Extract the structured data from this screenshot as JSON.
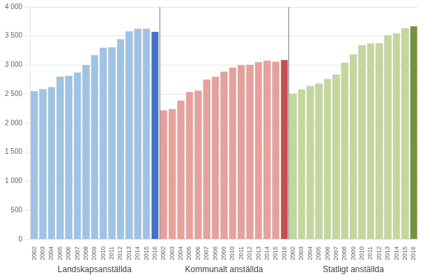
{
  "chart_data": {
    "type": "bar",
    "categories": [
      "2002",
      "2003",
      "2004",
      "2005",
      "2006",
      "2007",
      "2008",
      "2009",
      "2010",
      "2011",
      "2012",
      "2013",
      "2014",
      "2015",
      "2016",
      "2002",
      "2003",
      "2004",
      "2005",
      "2006",
      "2007",
      "2008",
      "2009",
      "2010",
      "2011",
      "2012",
      "2013",
      "2014",
      "2015",
      "2016",
      "2002",
      "2003",
      "2004",
      "2005",
      "2006",
      "2007",
      "2008",
      "2009",
      "2010",
      "2011",
      "2012",
      "2013",
      "2014",
      "2015",
      "2016"
    ],
    "values": [
      2550,
      2590,
      2620,
      2800,
      2815,
      2870,
      3000,
      3170,
      3300,
      3305,
      3445,
      3585,
      3625,
      3625,
      3575,
      2220,
      2245,
      2390,
      2540,
      2560,
      2750,
      2800,
      2890,
      2960,
      3000,
      3005,
      3050,
      3080,
      3060,
      3090,
      2510,
      2580,
      2640,
      2680,
      2760,
      2840,
      3040,
      3190,
      3345,
      3370,
      3375,
      3510,
      3545,
      3635,
      3670
    ],
    "colors": [
      "#9DC3E6",
      "#9DC3E6",
      "#9DC3E6",
      "#9DC3E6",
      "#9DC3E6",
      "#9DC3E6",
      "#9DC3E6",
      "#9DC3E6",
      "#9DC3E6",
      "#9DC3E6",
      "#9DC3E6",
      "#9DC3E6",
      "#9DC3E6",
      "#9DC3E6",
      "#4472C4",
      "#E8A09A",
      "#E8A09A",
      "#E8A09A",
      "#E8A09A",
      "#E8A09A",
      "#E8A09A",
      "#E8A09A",
      "#E8A09A",
      "#E8A09A",
      "#E8A09A",
      "#E8A09A",
      "#E8A09A",
      "#E8A09A",
      "#E8A09A",
      "#C0504D",
      "#C4D79B",
      "#C4D79B",
      "#C4D79B",
      "#C4D79B",
      "#C4D79B",
      "#C4D79B",
      "#C4D79B",
      "#C4D79B",
      "#C4D79B",
      "#C4D79B",
      "#C4D79B",
      "#C4D79B",
      "#C4D79B",
      "#C4D79B",
      "#76923C"
    ],
    "annotations": [
      "Landskapsanställda",
      "Kommunalt anställda",
      "Statligt anställda"
    ],
    "ylim": [
      0,
      4000
    ],
    "yticks": [
      0,
      500,
      {
        "value": 1000,
        "label": "1 000"
      },
      {
        "value": 1500,
        "label": "1 500"
      },
      {
        "value": 2000,
        "label": "2 000"
      },
      {
        "value": 2500,
        "label": "2 500"
      },
      {
        "value": 3000,
        "label": "3 000"
      },
      {
        "value": 3500,
        "label": "3 500"
      },
      {
        "value": 4000,
        "label": "4 000"
      }
    ],
    "grid": true
  }
}
